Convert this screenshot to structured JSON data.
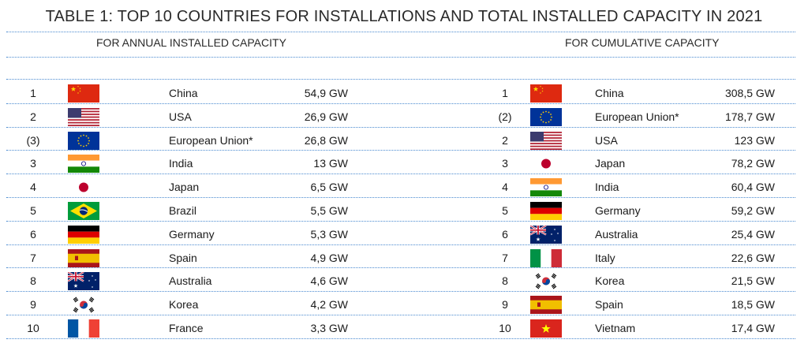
{
  "title": "TABLE 1: TOP 10 COUNTRIES FOR INSTALLATIONS AND TOTAL INSTALLED CAPACITY IN 2021",
  "annual": {
    "subtitle": "FOR ANNUAL INSTALLED CAPACITY",
    "rows": [
      {
        "rank": "1",
        "country": "China",
        "value": "54,9 GW",
        "flag": "china-flag-icon"
      },
      {
        "rank": "2",
        "country": "USA",
        "value": "26,9 GW",
        "flag": "usa-flag-icon"
      },
      {
        "rank": "(3)",
        "country": "European Union*",
        "value": "26,8 GW",
        "flag": "eu-flag-icon"
      },
      {
        "rank": "3",
        "country": "India",
        "value": "13 GW",
        "flag": "india-flag-icon"
      },
      {
        "rank": "4",
        "country": "Japan",
        "value": "6,5 GW",
        "flag": "japan-flag-icon"
      },
      {
        "rank": "5",
        "country": "Brazil",
        "value": "5,5 GW",
        "flag": "brazil-flag-icon"
      },
      {
        "rank": "6",
        "country": "Germany",
        "value": "5,3 GW",
        "flag": "germany-flag-icon"
      },
      {
        "rank": "7",
        "country": "Spain",
        "value": "4,9 GW",
        "flag": "spain-flag-icon"
      },
      {
        "rank": "8",
        "country": "Australia",
        "value": "4,6 GW",
        "flag": "australia-flag-icon"
      },
      {
        "rank": "9",
        "country": "Korea",
        "value": "4,2 GW",
        "flag": "korea-flag-icon"
      },
      {
        "rank": "10",
        "country": "France",
        "value": "3,3 GW",
        "flag": "france-flag-icon"
      }
    ]
  },
  "cumulative": {
    "subtitle": "FOR CUMULATIVE CAPACITY",
    "rows": [
      {
        "rank": "1",
        "country": "China",
        "value": "308,5 GW",
        "flag": "china-flag-icon"
      },
      {
        "rank": "(2)",
        "country": "European Union*",
        "value": "178,7 GW",
        "flag": "eu-flag-icon"
      },
      {
        "rank": "2",
        "country": "USA",
        "value": "123 GW",
        "flag": "usa-flag-icon"
      },
      {
        "rank": "3",
        "country": "Japan",
        "value": "78,2 GW",
        "flag": "japan-flag-icon"
      },
      {
        "rank": "4",
        "country": "India",
        "value": "60,4 GW",
        "flag": "india-flag-icon"
      },
      {
        "rank": "5",
        "country": "Germany",
        "value": "59,2 GW",
        "flag": "germany-flag-icon"
      },
      {
        "rank": "6",
        "country": "Australia",
        "value": "25,4 GW",
        "flag": "australia-flag-icon"
      },
      {
        "rank": "7",
        "country": "Italy",
        "value": "22,6 GW",
        "flag": "italy-flag-icon"
      },
      {
        "rank": "8",
        "country": "Korea",
        "value": "21,5 GW",
        "flag": "korea-flag-icon"
      },
      {
        "rank": "9",
        "country": "Spain",
        "value": "18,5 GW",
        "flag": "spain-flag-icon"
      },
      {
        "rank": "10",
        "country": "Vietnam",
        "value": "17,4 GW",
        "flag": "vietnam-flag-icon"
      }
    ]
  },
  "colors": {
    "rule": "#4a8ad0",
    "text": "#1a1a1a"
  }
}
